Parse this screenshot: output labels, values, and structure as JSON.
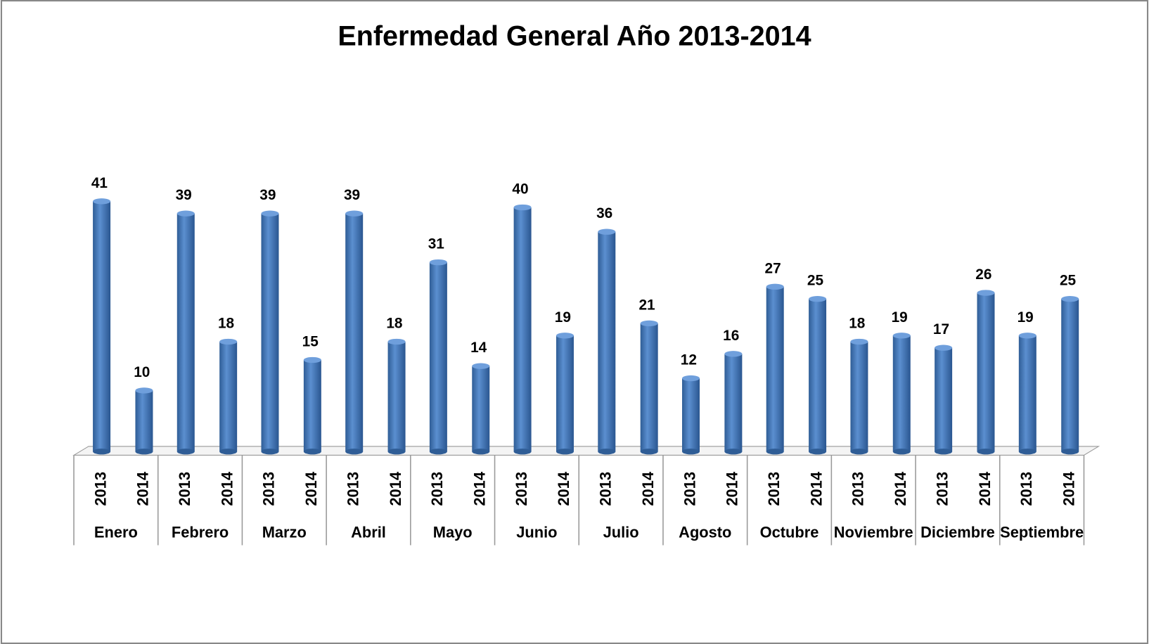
{
  "chart_data": {
    "type": "bar3d",
    "title": "Enfermedad General Año 2013-2014",
    "categories": [
      "Enero",
      "Febrero",
      "Marzo",
      "Abril",
      "Mayo",
      "Junio",
      "Julio",
      "Agosto",
      "Octubre",
      "Noviembre",
      "Diciembre",
      "Septiembre"
    ],
    "series": [
      {
        "name": "2013",
        "color": "#4f81bd",
        "values": [
          41,
          39,
          39,
          39,
          31,
          40,
          36,
          12,
          27,
          18,
          17,
          19
        ]
      },
      {
        "name": "2014",
        "color": "#4f81bd",
        "values": [
          10,
          18,
          15,
          18,
          14,
          19,
          21,
          16,
          25,
          19,
          26,
          25
        ]
      }
    ]
  }
}
